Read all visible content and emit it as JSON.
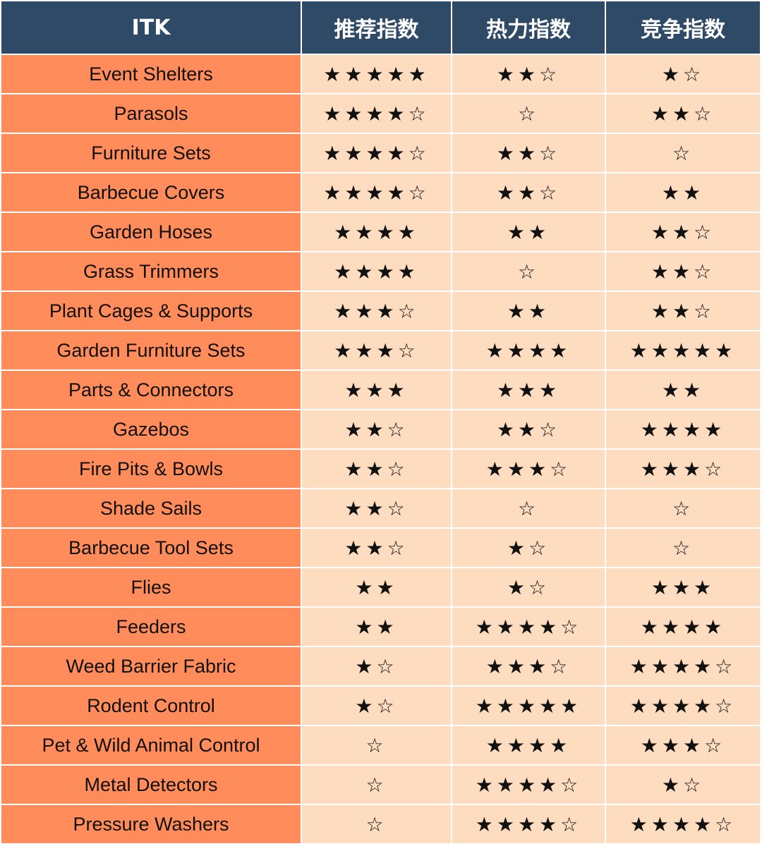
{
  "table": {
    "header": [
      "ITK",
      "推荐指数",
      "热力指数",
      "竞争指数"
    ],
    "rows": [
      [
        "Event Shelters",
        "★★★★★",
        "★★☆",
        "★☆"
      ],
      [
        "Parasols",
        "★★★★☆",
        "☆",
        "★★☆"
      ],
      [
        "Furniture Sets",
        "★★★★☆",
        "★★☆",
        "☆"
      ],
      [
        "Barbecue Covers",
        "★★★★☆",
        "★★☆",
        "★★"
      ],
      [
        "Garden Hoses",
        "★★★★",
        "★★",
        "★★☆"
      ],
      [
        "Grass Trimmers",
        "★★★★",
        "☆",
        "★★☆"
      ],
      [
        "Plant Cages & Supports",
        "★★★☆",
        "★★",
        "★★☆"
      ],
      [
        "Garden Furniture Sets",
        "★★★☆",
        "★★★★",
        "★★★★★"
      ],
      [
        "Parts & Connectors",
        "★★★",
        "★★★",
        "★★"
      ],
      [
        "Gazebos",
        "★★☆",
        "★★☆",
        "★★★★"
      ],
      [
        "Fire Pits & Bowls",
        "★★☆",
        "★★★☆",
        "★★★☆"
      ],
      [
        "Shade Sails",
        "★★☆",
        "☆",
        "☆"
      ],
      [
        "Barbecue Tool Sets",
        "★★☆",
        "★☆",
        "☆"
      ],
      [
        "Flies",
        "★★",
        "★☆",
        "★★★"
      ],
      [
        "Feeders",
        "★★",
        "★★★★☆",
        "★★★★"
      ],
      [
        "Weed Barrier Fabric",
        "★☆",
        "★★★☆",
        "★★★★☆"
      ],
      [
        "Rodent Control",
        "★☆",
        "★★★★★",
        "★★★★☆"
      ],
      [
        "Pet & Wild Animal Control",
        "☆",
        "★★★★",
        "★★★☆"
      ],
      [
        "Metal Detectors",
        "☆",
        "★★★★☆",
        "★☆"
      ],
      [
        "Pressure Washers",
        "☆",
        "★★★★☆",
        "★★★★☆"
      ]
    ]
  }
}
